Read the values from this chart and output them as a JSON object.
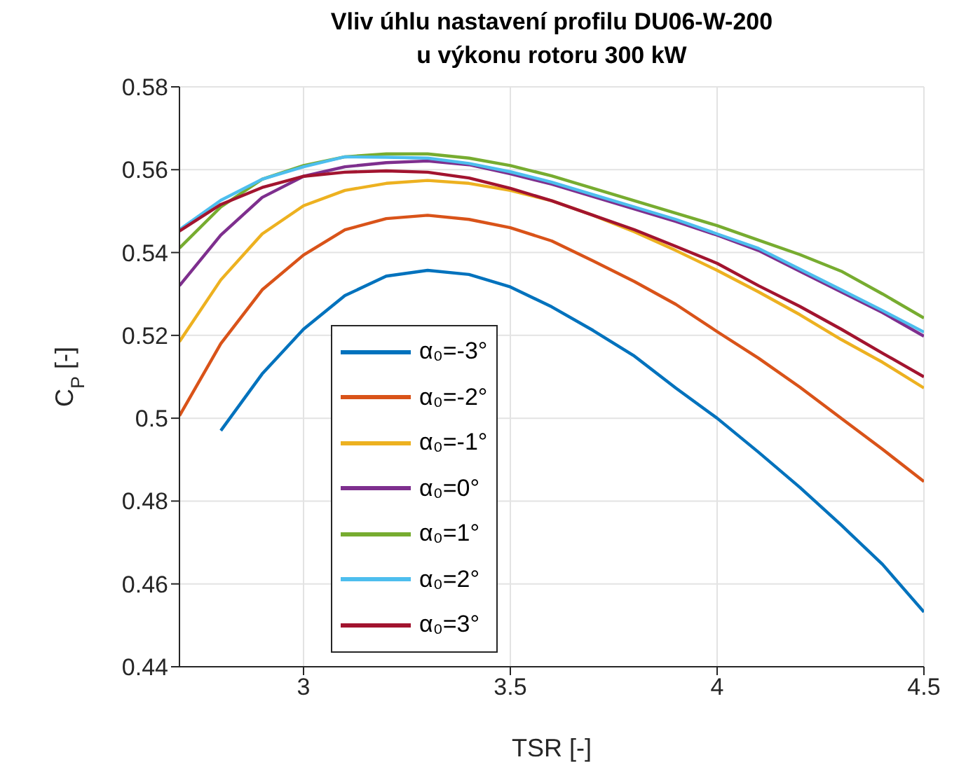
{
  "chart_data": {
    "type": "line",
    "title": "Vliv úhlu nastavení profilu DU06-W-200\nu výkonu rotoru 300 kW",
    "xlabel": "TSR [-]",
    "ylabel": "C$_{P}$ [-]",
    "x": [
      2.7,
      2.8,
      2.9,
      3.0,
      3.1,
      3.2,
      3.3,
      3.4,
      3.5,
      3.6,
      3.7,
      3.8,
      3.9,
      4.0,
      4.1,
      4.2,
      4.3,
      4.4,
      4.5
    ],
    "xlim": [
      2.7,
      4.5
    ],
    "xticks": [
      3,
      3.5,
      4,
      4.5
    ],
    "ylim": [
      0.44,
      0.58
    ],
    "yticks": [
      0.44,
      0.46,
      0.48,
      0.5,
      0.52,
      0.54,
      0.56,
      0.58
    ],
    "grid": true,
    "legend": "bottom left",
    "marker": "none",
    "line_style": "solid",
    "series": [
      {
        "name": "α₀=-3°",
        "color": "#0072bd",
        "values": [
          null,
          0.497,
          0.5107,
          0.5215,
          0.5296,
          0.5343,
          0.5357,
          0.5347,
          0.5317,
          0.5269,
          0.5212,
          0.515,
          0.5073,
          0.5,
          0.4918,
          0.4833,
          0.4742,
          0.4647,
          0.4532
        ]
      },
      {
        "name": "α₀=-2°",
        "color": "#d95319",
        "values": [
          0.5006,
          0.518,
          0.531,
          0.5394,
          0.5455,
          0.5482,
          0.549,
          0.548,
          0.546,
          0.5428,
          0.538,
          0.533,
          0.5275,
          0.5209,
          0.5145,
          0.5075,
          0.5,
          0.4925,
          0.4847
        ]
      },
      {
        "name": "α₀=-1°",
        "color": "#edb120",
        "values": [
          0.5185,
          0.5334,
          0.5445,
          0.5513,
          0.555,
          0.5567,
          0.5574,
          0.5567,
          0.555,
          0.5525,
          0.549,
          0.545,
          0.5405,
          0.5357,
          0.5305,
          0.525,
          0.519,
          0.5135,
          0.5073
        ]
      },
      {
        "name": "α₀=0°",
        "color": "#7e2f8e",
        "values": [
          0.532,
          0.5442,
          0.5533,
          0.5584,
          0.5607,
          0.5617,
          0.5621,
          0.5612,
          0.559,
          0.5565,
          0.5535,
          0.5505,
          0.5475,
          0.5442,
          0.5405,
          0.5355,
          0.5305,
          0.5255,
          0.5198
        ]
      },
      {
        "name": "α₀=1°",
        "color": "#77ac30",
        "values": [
          0.5411,
          0.551,
          0.5577,
          0.561,
          0.5631,
          0.5638,
          0.5638,
          0.5628,
          0.561,
          0.5585,
          0.5555,
          0.5525,
          0.5495,
          0.5465,
          0.543,
          0.5395,
          0.5355,
          0.53,
          0.5242
        ]
      },
      {
        "name": "α₀=2°",
        "color": "#4dbeee",
        "values": [
          0.5455,
          0.5526,
          0.5577,
          0.5607,
          0.5631,
          0.563,
          0.5628,
          0.5615,
          0.5595,
          0.557,
          0.554,
          0.551,
          0.548,
          0.5445,
          0.541,
          0.536,
          0.531,
          0.526,
          0.5208
        ]
      },
      {
        "name": "α₀=3°",
        "color": "#a2142f",
        "values": [
          0.5452,
          0.5516,
          0.5557,
          0.5584,
          0.5594,
          0.5597,
          0.5594,
          0.558,
          0.5555,
          0.5525,
          0.549,
          0.5455,
          0.5415,
          0.5374,
          0.532,
          0.527,
          0.5215,
          0.5157,
          0.51
        ]
      }
    ]
  }
}
